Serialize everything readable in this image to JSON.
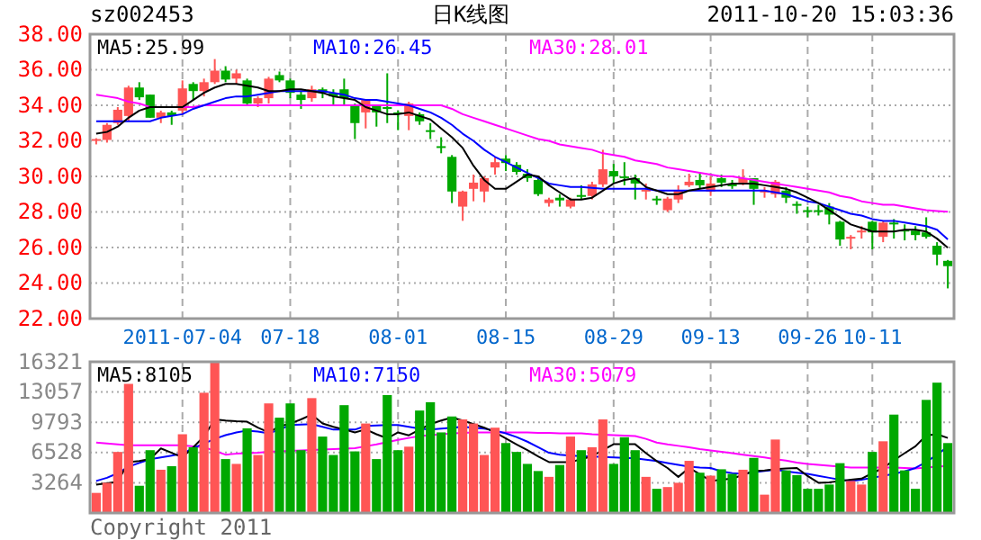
{
  "chart_data": [
    {
      "type": "candlestick",
      "title": "sz002453",
      "subtitle": "日K线图",
      "annotations": [
        "2011-10-20 15:03:36"
      ],
      "categories": [
        null,
        null,
        null,
        null,
        null,
        null,
        null,
        null,
        "2011-07-04",
        null,
        null,
        null,
        null,
        null,
        null,
        null,
        null,
        null,
        "07-18",
        null,
        null,
        null,
        null,
        null,
        null,
        null,
        null,
        null,
        "08-01",
        null,
        null,
        null,
        null,
        null,
        null,
        null,
        null,
        null,
        "08-15",
        null,
        null,
        null,
        null,
        null,
        null,
        null,
        null,
        null,
        "08-29",
        null,
        null,
        null,
        null,
        null,
        null,
        null,
        null,
        "09-13",
        null,
        null,
        null,
        null,
        null,
        null,
        null,
        null,
        "09-26",
        null,
        null,
        null,
        null,
        null,
        "10-11",
        null,
        null,
        null,
        null,
        null,
        null,
        null
      ],
      "ohlc": [
        [
          32.0,
          32.15,
          31.8,
          32.1
        ],
        [
          32.05,
          33.0,
          31.9,
          32.9
        ],
        [
          33.0,
          33.9,
          32.9,
          33.75
        ],
        [
          33.4,
          35.1,
          33.1,
          35.0
        ],
        [
          35.0,
          35.3,
          34.3,
          34.45
        ],
        [
          34.6,
          34.6,
          33.3,
          33.3
        ],
        [
          33.3,
          33.7,
          33.0,
          33.6
        ],
        [
          33.6,
          33.7,
          32.9,
          33.4
        ],
        [
          33.7,
          35.4,
          33.5,
          34.95
        ],
        [
          35.2,
          35.3,
          34.3,
          34.8
        ],
        [
          34.8,
          35.5,
          34.5,
          35.3
        ],
        [
          35.3,
          36.6,
          35.2,
          35.95
        ],
        [
          35.95,
          36.2,
          35.3,
          35.45
        ],
        [
          35.5,
          36.0,
          35.2,
          35.8
        ],
        [
          35.4,
          35.5,
          34.0,
          34.1
        ],
        [
          34.1,
          34.5,
          33.9,
          34.4
        ],
        [
          34.4,
          35.6,
          34.1,
          35.5
        ],
        [
          35.7,
          35.9,
          35.3,
          35.4
        ],
        [
          35.4,
          35.5,
          34.4,
          34.7
        ],
        [
          34.6,
          34.8,
          33.8,
          34.3
        ],
        [
          34.4,
          35.1,
          34.2,
          34.9
        ],
        [
          34.9,
          35.0,
          34.4,
          34.7
        ],
        [
          34.7,
          34.9,
          34.0,
          34.5
        ],
        [
          34.9,
          35.5,
          34.0,
          34.4
        ],
        [
          34.0,
          34.1,
          32.1,
          33.0
        ],
        [
          33.6,
          34.3,
          32.7,
          34.3
        ],
        [
          34.0,
          34.0,
          32.8,
          33.6
        ],
        [
          33.9,
          35.8,
          33.0,
          33.8
        ],
        [
          33.6,
          33.7,
          32.6,
          33.5
        ],
        [
          33.4,
          34.2,
          32.6,
          34.1
        ],
        [
          33.5,
          33.6,
          32.9,
          33.1
        ],
        [
          32.6,
          33.0,
          32.1,
          32.55
        ],
        [
          31.7,
          32.2,
          31.3,
          31.65
        ],
        [
          31.1,
          31.2,
          28.5,
          29.15
        ],
        [
          28.3,
          29.2,
          27.5,
          29.15
        ],
        [
          29.3,
          30.1,
          28.6,
          29.65
        ],
        [
          29.15,
          30.0,
          28.55,
          29.9
        ],
        [
          30.5,
          31.1,
          30.1,
          30.8
        ],
        [
          31.0,
          31.2,
          30.3,
          30.75
        ],
        [
          30.65,
          30.8,
          30.1,
          30.25
        ],
        [
          30.15,
          30.4,
          29.7,
          29.9
        ],
        [
          29.8,
          29.9,
          28.9,
          29.0
        ],
        [
          28.5,
          28.8,
          28.3,
          28.7
        ],
        [
          28.8,
          29.0,
          28.3,
          28.65
        ],
        [
          28.3,
          28.8,
          28.2,
          28.7
        ],
        [
          28.95,
          29.5,
          28.7,
          28.9
        ],
        [
          28.9,
          29.7,
          28.7,
          29.55
        ],
        [
          29.55,
          31.5,
          29.4,
          30.4
        ],
        [
          30.3,
          30.7,
          29.6,
          30.0
        ],
        [
          30.0,
          30.8,
          29.5,
          29.9
        ],
        [
          29.9,
          30.1,
          28.7,
          29.6
        ],
        [
          29.15,
          29.6,
          28.7,
          29.25
        ],
        [
          28.75,
          28.9,
          28.4,
          28.65
        ],
        [
          28.1,
          28.85,
          28.0,
          28.75
        ],
        [
          28.7,
          29.5,
          28.5,
          29.2
        ],
        [
          29.5,
          30.15,
          29.4,
          29.7
        ],
        [
          29.8,
          30.2,
          29.3,
          29.5
        ],
        [
          29.15,
          30.0,
          28.9,
          29.6
        ],
        [
          29.9,
          30.1,
          29.4,
          29.65
        ],
        [
          29.55,
          29.8,
          29.3,
          29.5
        ],
        [
          29.65,
          30.4,
          29.5,
          29.9
        ],
        [
          29.9,
          29.9,
          28.4,
          29.3
        ],
        [
          29.1,
          29.4,
          28.8,
          29.2
        ],
        [
          29.0,
          29.8,
          28.8,
          29.7
        ],
        [
          29.2,
          29.4,
          28.5,
          28.8
        ],
        [
          28.45,
          28.6,
          27.9,
          28.4
        ],
        [
          28.1,
          28.3,
          27.7,
          28.05
        ],
        [
          28.1,
          28.4,
          27.8,
          28.05
        ],
        [
          28.3,
          28.5,
          27.3,
          27.85
        ],
        [
          27.45,
          27.5,
          26.1,
          26.45
        ],
        [
          26.55,
          26.7,
          25.9,
          26.6
        ],
        [
          26.9,
          27.2,
          26.5,
          26.95
        ],
        [
          27.45,
          27.5,
          25.9,
          26.85
        ],
        [
          26.6,
          27.5,
          26.3,
          27.4
        ],
        [
          27.4,
          27.6,
          26.5,
          27.35
        ],
        [
          27.0,
          27.3,
          26.4,
          26.95
        ],
        [
          26.95,
          27.2,
          26.4,
          26.7
        ],
        [
          26.85,
          27.7,
          26.5,
          26.6
        ],
        [
          26.1,
          26.3,
          25.0,
          25.6
        ],
        [
          25.25,
          25.3,
          23.7,
          24.95
        ]
      ],
      "colors": [
        "#ff5555",
        "#ff5555",
        "#ff5555",
        "#ff5555",
        "#00a800",
        "#00a800",
        "#ff5555",
        "#00a800",
        "#ff5555",
        "#00a800",
        "#ff5555",
        "#ff5555",
        "#00a800",
        "#ff5555",
        "#00a800",
        "#ff5555",
        "#ff5555",
        "#00a800",
        "#00a800",
        "#00a800",
        "#ff5555",
        "#00a800",
        "#00a800",
        "#00a800",
        "#00a800",
        "#ff5555",
        "#00a800",
        "#00a800",
        "#00a800",
        "#ff5555",
        "#00a800",
        "#00a800",
        "#00a800",
        "#00a800",
        "#ff5555",
        "#ff5555",
        "#ff5555",
        "#ff5555",
        "#00a800",
        "#00a800",
        "#00a800",
        "#00a800",
        "#ff5555",
        "#00a800",
        "#ff5555",
        "#00a800",
        "#ff5555",
        "#ff5555",
        "#00a800",
        "#00a800",
        "#00a800",
        "#ff5555",
        "#00a800",
        "#ff5555",
        "#ff5555",
        "#ff5555",
        "#00a800",
        "#ff5555",
        "#00a800",
        "#00a800",
        "#ff5555",
        "#00a800",
        "#ff5555",
        "#ff5555",
        "#00a800",
        "#00a800",
        "#00a800",
        "#00a800",
        "#00a800",
        "#00a800",
        "#ff5555",
        "#ff5555",
        "#00a800",
        "#ff5555",
        "#00a800",
        "#00a800",
        "#00a800",
        "#00a800",
        "#00a800",
        "#00a800"
      ],
      "series": [
        {
          "name": "MA5:25.99",
          "type": "line",
          "color": "#000000",
          "values": [
            32.4,
            32.5,
            32.8,
            33.3,
            33.7,
            33.9,
            33.9,
            33.9,
            33.9,
            34.3,
            34.7,
            35.0,
            35.2,
            35.2,
            35.1,
            35.0,
            34.8,
            34.8,
            34.9,
            34.9,
            34.8,
            34.7,
            34.5,
            34.4,
            34.3,
            33.9,
            33.7,
            33.5,
            33.5,
            33.6,
            33.4,
            33.2,
            32.7,
            32.2,
            31.6,
            30.6,
            29.8,
            29.3,
            29.3,
            29.7,
            30.1,
            30.0,
            29.5,
            29.1,
            28.7,
            28.7,
            28.8,
            29.2,
            29.6,
            29.8,
            29.9,
            29.4,
            29.2,
            29.0,
            29.0,
            29.2,
            29.3,
            29.4,
            29.5,
            29.6,
            29.6,
            29.6,
            29.5,
            29.4,
            29.3,
            29.1,
            28.8,
            28.5,
            28.1,
            27.7,
            27.3,
            27.1,
            26.9,
            26.9,
            26.9,
            27.0,
            27.0,
            26.9,
            26.5,
            25.99
          ]
        },
        {
          "name": "MA10:26.45",
          "type": "line",
          "color": "#0000ff",
          "values": [
            33.1,
            33.1,
            33.1,
            33.1,
            33.1,
            33.1,
            33.3,
            33.4,
            33.5,
            33.8,
            34.0,
            34.2,
            34.4,
            34.5,
            34.5,
            34.6,
            34.7,
            34.8,
            34.8,
            34.8,
            34.8,
            34.8,
            34.7,
            34.6,
            34.4,
            34.3,
            34.3,
            34.2,
            34.1,
            34.0,
            33.8,
            33.6,
            33.3,
            32.9,
            32.4,
            32.0,
            31.5,
            31.1,
            30.8,
            30.5,
            30.2,
            29.9,
            29.6,
            29.5,
            29.4,
            29.4,
            29.35,
            29.3,
            29.3,
            29.3,
            29.3,
            29.3,
            29.2,
            29.2,
            29.2,
            29.2,
            29.2,
            29.2,
            29.2,
            29.2,
            29.2,
            29.2,
            29.2,
            29.1,
            29.0,
            28.8,
            28.6,
            28.5,
            28.3,
            28.1,
            27.9,
            27.8,
            27.6,
            27.5,
            27.5,
            27.4,
            27.3,
            27.2,
            27.0,
            26.45
          ]
        },
        {
          "name": "MA30:28.01",
          "type": "line",
          "color": "#ff00ff",
          "values": [
            34.6,
            34.5,
            34.4,
            34.2,
            34.1,
            33.9,
            33.9,
            33.9,
            33.9,
            33.9,
            34.0,
            34.0,
            34.0,
            34.0,
            34.0,
            34.0,
            34.0,
            34.0,
            34.0,
            34.0,
            34.0,
            34.0,
            34.0,
            34.0,
            34.0,
            34.0,
            34.0,
            34.0,
            34.0,
            34.0,
            34.0,
            34.0,
            34.0,
            33.8,
            33.5,
            33.3,
            33.1,
            32.9,
            32.7,
            32.5,
            32.3,
            32.1,
            32.0,
            31.8,
            31.7,
            31.6,
            31.5,
            31.3,
            31.2,
            31.1,
            30.9,
            30.8,
            30.7,
            30.5,
            30.4,
            30.3,
            30.2,
            30.1,
            30.0,
            30.0,
            29.9,
            29.8,
            29.7,
            29.6,
            29.5,
            29.4,
            29.3,
            29.2,
            29.1,
            28.9,
            28.8,
            28.6,
            28.5,
            28.4,
            28.4,
            28.3,
            28.2,
            28.1,
            28.05,
            28.01
          ]
        }
      ],
      "ylim": [
        22,
        38
      ],
      "yticks": [
        {
          "value": 22,
          "label": "22.00"
        },
        {
          "value": 24,
          "label": "24.00"
        },
        {
          "value": 26,
          "label": "26.00"
        },
        {
          "value": 28,
          "label": "28.00"
        },
        {
          "value": 30,
          "label": "30.00"
        },
        {
          "value": 32,
          "label": "32.00"
        },
        {
          "value": 34,
          "label": "34.00"
        },
        {
          "value": 36,
          "label": "36.00"
        },
        {
          "value": 38,
          "label": "38.00"
        }
      ],
      "grid": true,
      "legend": "top"
    },
    {
      "type": "bar",
      "annotations": [
        "Copyright 2011"
      ],
      "tick_labels": "y",
      "categories": [
        null,
        null,
        null,
        null,
        null,
        null,
        null,
        null,
        null,
        null,
        null,
        null,
        null,
        null,
        null,
        null,
        null,
        null,
        null,
        null,
        null,
        null,
        null,
        null,
        null,
        null,
        null,
        null,
        null,
        null,
        null,
        null,
        null,
        null,
        null,
        null,
        null,
        null,
        null,
        null,
        null,
        null,
        null,
        null,
        null,
        null,
        null,
        null,
        null,
        null,
        null,
        null,
        null,
        null,
        null,
        null,
        null,
        null,
        null,
        null,
        null,
        null,
        null,
        null,
        null,
        null,
        null,
        null,
        null,
        null,
        null,
        null,
        null,
        null,
        null,
        null,
        null,
        null,
        null,
        null
      ],
      "series": [
        {
          "type": "bar",
          "values": [
            2170,
            3260,
            6590,
            13940,
            2940,
            6780,
            4670,
            5050,
            8500,
            7100,
            12980,
            16300,
            5820,
            5300,
            9140,
            6260,
            11830,
            10290,
            11830,
            6780,
            12400,
            8250,
            6260,
            11640,
            6650,
            9660,
            5820,
            12730,
            6780,
            7160,
            11060,
            11960,
            8700,
            10420,
            10100,
            9660,
            6260,
            9210,
            7550,
            6590,
            5300,
            4530,
            3900,
            5180,
            8250,
            6780,
            7100,
            10100,
            5300,
            8180,
            6780,
            3900,
            2610,
            2800,
            3260,
            5630,
            4350,
            4030,
            4720,
            4220,
            4670,
            5950,
            1980,
            7930,
            4600,
            4090,
            2610,
            2610,
            3070,
            5380,
            3460,
            3070,
            6590,
            7740,
            10620,
            4600,
            2610,
            12210,
            14070,
            7550
          ],
          "colors": [
            "#ff5555",
            "#ff5555",
            "#ff5555",
            "#ff5555",
            "#00a800",
            "#00a800",
            "#ff5555",
            "#00a800",
            "#ff5555",
            "#00a800",
            "#ff5555",
            "#ff5555",
            "#00a800",
            "#ff5555",
            "#00a800",
            "#ff5555",
            "#ff5555",
            "#00a800",
            "#00a800",
            "#00a800",
            "#ff5555",
            "#00a800",
            "#00a800",
            "#00a800",
            "#00a800",
            "#ff5555",
            "#00a800",
            "#00a800",
            "#00a800",
            "#ff5555",
            "#00a800",
            "#00a800",
            "#00a800",
            "#00a800",
            "#ff5555",
            "#ff5555",
            "#ff5555",
            "#ff5555",
            "#00a800",
            "#00a800",
            "#00a800",
            "#00a800",
            "#ff5555",
            "#00a800",
            "#ff5555",
            "#00a800",
            "#ff5555",
            "#ff5555",
            "#00a800",
            "#00a800",
            "#00a800",
            "#ff5555",
            "#00a800",
            "#ff5555",
            "#ff5555",
            "#ff5555",
            "#00a800",
            "#ff5555",
            "#00a800",
            "#00a800",
            "#ff5555",
            "#00a800",
            "#ff5555",
            "#ff5555",
            "#00a800",
            "#00a800",
            "#00a800",
            "#00a800",
            "#00a800",
            "#00a800",
            "#ff5555",
            "#ff5555",
            "#00a800",
            "#ff5555",
            "#00a800",
            "#00a800",
            "#00a800",
            "#00a800",
            "#00a800",
            "#00a800"
          ]
        },
        {
          "name": "MA5:8105",
          "type": "line",
          "color": "#000000",
          "values": [
            3070,
            3200,
            3380,
            5500,
            5600,
            5820,
            6970,
            6500,
            6010,
            7100,
            8250,
            10100,
            9980,
            9900,
            9850,
            9210,
            8700,
            9340,
            9660,
            10100,
            10620,
            9660,
            9300,
            9020,
            8700,
            9020,
            8500,
            8060,
            8700,
            8380,
            9000,
            9600,
            9980,
            10300,
            9980,
            9600,
            9210,
            8700,
            8060,
            7400,
            6780,
            6100,
            5500,
            5500,
            5500,
            5800,
            6130,
            6800,
            7420,
            7420,
            7420,
            6460,
            5600,
            4860,
            3900,
            4860,
            4200,
            3460,
            3600,
            3710,
            4100,
            4540,
            4600,
            4730,
            4800,
            4860,
            4000,
            3260,
            3300,
            3460,
            3600,
            3710,
            4300,
            4860,
            5700,
            6460,
            7200,
            8380,
            8500,
            8105
          ]
        },
        {
          "name": "MA10:7150",
          "type": "line",
          "color": "#0000ff",
          "values": [
            3460,
            3800,
            4300,
            5000,
            5400,
            5800,
            6000,
            6200,
            6400,
            7000,
            7500,
            8000,
            8400,
            8700,
            8900,
            8800,
            8600,
            9000,
            9500,
            9550,
            9600,
            9300,
            9000,
            9000,
            9000,
            9400,
            9450,
            9500,
            9500,
            9300,
            9100,
            9000,
            9100,
            9200,
            9300,
            9200,
            9100,
            8900,
            8600,
            8200,
            7700,
            7100,
            6500,
            6300,
            6200,
            6150,
            6100,
            6050,
            6000,
            5950,
            5900,
            5750,
            5600,
            5400,
            5200,
            5000,
            4900,
            4860,
            4500,
            4300,
            4220,
            4400,
            4550,
            4670,
            4500,
            4350,
            4220,
            4000,
            3800,
            3600,
            3460,
            3600,
            3800,
            4000,
            4220,
            4500,
            4860,
            5500,
            6300,
            7150
          ]
        },
        {
          "name": "MA30:5079",
          "type": "line",
          "color": "#ff00ff",
          "values": [
            7600,
            7500,
            7400,
            7300,
            7300,
            7300,
            7300,
            7300,
            7300,
            7200,
            7100,
            6700,
            6300,
            6400,
            6450,
            6500,
            6600,
            6650,
            6700,
            6750,
            6800,
            6850,
            6900,
            6950,
            7000,
            7200,
            7400,
            7650,
            7900,
            8100,
            8300,
            8400,
            8500,
            8600,
            8650,
            8700,
            8700,
            8700,
            8700,
            8700,
            8700,
            8650,
            8650,
            8600,
            8600,
            8600,
            8500,
            8450,
            8400,
            8350,
            8300,
            8000,
            7600,
            7400,
            7250,
            7100,
            6900,
            6750,
            6600,
            6450,
            6300,
            6150,
            6000,
            5800,
            5650,
            5450,
            5300,
            5200,
            5100,
            5000,
            4900,
            4900,
            4900,
            4900,
            4900,
            4850,
            4800,
            4900,
            5000,
            5079
          ]
        }
      ],
      "ylim": [
        0,
        16321
      ],
      "yticks": [
        3264,
        6528,
        9793,
        13057,
        16321
      ],
      "grid": true,
      "legend": "top"
    }
  ]
}
